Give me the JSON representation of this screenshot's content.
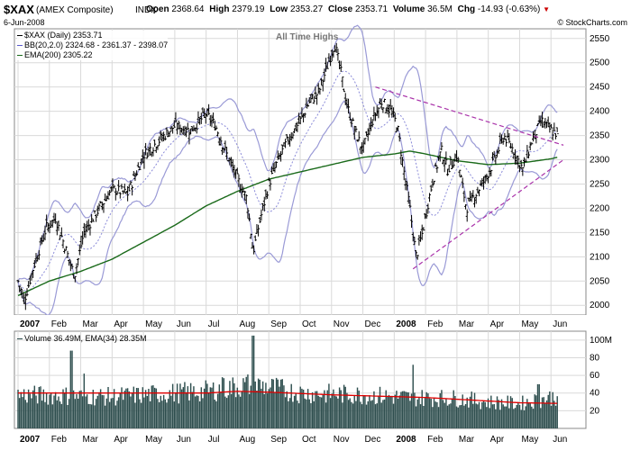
{
  "header": {
    "symbol": "$XAX",
    "name": "(AMEX Composite)",
    "exchange": "INDX",
    "date": "6-Jun-2008",
    "open_label": "Open",
    "open": "2368.64",
    "high_label": "High",
    "high": "2379.19",
    "low_label": "Low",
    "low": "2353.27",
    "close_label": "Close",
    "close": "2353.71",
    "volume_label": "Volume",
    "volume": "36.5M",
    "chg_label": "Chg",
    "chg": "-14.93 (-0.63%)",
    "watermark": "© StockCharts.com"
  },
  "legend": {
    "price": "$XAX (Daily) 2353.71",
    "bb": "BB(20,2.0) 2324.68 - 2361.37 - 2398.07",
    "ema": "EMA(200) 2305.22",
    "volume": "Volume 36.49M, EMA(34) 28.35M"
  },
  "annotation": "All Time Highs",
  "colors": {
    "price": "#000000",
    "bb_band": "#9a9ad6",
    "bb_mid": "#8a8ad8",
    "ema": "#1a6a1a",
    "trend": "#aa33aa",
    "volume_bar": "#2f4f4f",
    "volume_ema": "#e00000",
    "grid": "#d9d9d9"
  },
  "chart_data": [
    {
      "type": "line",
      "title": "$XAX (Daily) 2353.71",
      "x_axis_labels": [
        "2007",
        "Feb",
        "Mar",
        "Apr",
        "May",
        "Jun",
        "Jul",
        "Aug",
        "Sep",
        "Oct",
        "Nov",
        "Dec",
        "2008",
        "Feb",
        "Mar",
        "Apr",
        "May",
        "Jun"
      ],
      "y_tick_labels": [
        "2000",
        "2050",
        "2100",
        "2150",
        "2200",
        "2250",
        "2300",
        "2350",
        "2400",
        "2450",
        "2500",
        "2550"
      ],
      "ylim": [
        1980,
        2570
      ],
      "grid": true,
      "price_anchors_month_index": [
        [
          0.0,
          2050
        ],
        [
          0.2,
          2010
        ],
        [
          0.5,
          2080
        ],
        [
          0.9,
          2160
        ],
        [
          1.2,
          2180
        ],
        [
          1.5,
          2120
        ],
        [
          1.8,
          2060
        ],
        [
          2.1,
          2150
        ],
        [
          2.5,
          2190
        ],
        [
          3.0,
          2240
        ],
        [
          3.5,
          2230
        ],
        [
          4.0,
          2310
        ],
        [
          4.5,
          2340
        ],
        [
          5.0,
          2370
        ],
        [
          5.5,
          2360
        ],
        [
          6.0,
          2395
        ],
        [
          6.3,
          2370
        ],
        [
          6.6,
          2320
        ],
        [
          7.0,
          2260
        ],
        [
          7.3,
          2220
        ],
        [
          7.5,
          2110
        ],
        [
          7.7,
          2170
        ],
        [
          8.0,
          2250
        ],
        [
          8.3,
          2300
        ],
        [
          8.6,
          2340
        ],
        [
          9.0,
          2380
        ],
        [
          9.3,
          2420
        ],
        [
          9.6,
          2440
        ],
        [
          9.9,
          2500
        ],
        [
          10.1,
          2540
        ],
        [
          10.3,
          2480
        ],
        [
          10.5,
          2410
        ],
        [
          10.8,
          2350
        ],
        [
          11.0,
          2320
        ],
        [
          11.3,
          2380
        ],
        [
          11.6,
          2420
        ],
        [
          11.9,
          2400
        ],
        [
          12.1,
          2370
        ],
        [
          12.3,
          2280
        ],
        [
          12.5,
          2200
        ],
        [
          12.7,
          2100
        ],
        [
          12.9,
          2150
        ],
        [
          13.2,
          2250
        ],
        [
          13.5,
          2320
        ],
        [
          13.7,
          2280
        ],
        [
          14.0,
          2310
        ],
        [
          14.3,
          2200
        ],
        [
          14.6,
          2230
        ],
        [
          14.9,
          2260
        ],
        [
          15.2,
          2300
        ],
        [
          15.5,
          2350
        ],
        [
          15.8,
          2320
        ],
        [
          16.1,
          2280
        ],
        [
          16.4,
          2340
        ],
        [
          16.7,
          2380
        ],
        [
          17.0,
          2360
        ],
        [
          17.2,
          2354
        ]
      ],
      "ema200_anchors_month_index": [
        [
          0.0,
          2020
        ],
        [
          1.0,
          2050
        ],
        [
          2.0,
          2070
        ],
        [
          3.0,
          2095
        ],
        [
          4.0,
          2130
        ],
        [
          5.0,
          2165
        ],
        [
          6.0,
          2205
        ],
        [
          7.0,
          2235
        ],
        [
          8.0,
          2260
        ],
        [
          9.0,
          2275
        ],
        [
          10.0,
          2290
        ],
        [
          11.0,
          2305
        ],
        [
          12.0,
          2312
        ],
        [
          12.5,
          2318
        ],
        [
          13.0,
          2312
        ],
        [
          14.0,
          2298
        ],
        [
          15.0,
          2290
        ],
        [
          16.0,
          2293
        ],
        [
          17.0,
          2302
        ],
        [
          17.2,
          2305
        ]
      ],
      "trendlines": [
        {
          "from": [
            11.4,
            2450
          ],
          "to": [
            17.4,
            2330
          ]
        },
        {
          "from": [
            12.6,
            2075
          ],
          "to": [
            17.4,
            2300
          ]
        }
      ],
      "last": {
        "close": 2353.71,
        "ema200": 2305.22,
        "bb_lower": 2324.68,
        "bb_mid": 2361.37,
        "bb_upper": 2398.07
      }
    },
    {
      "type": "bar",
      "title": "Volume 36.49M, EMA(34) 28.35M",
      "y_tick_labels": [
        "20",
        "40",
        "60",
        "80",
        "100M"
      ],
      "ylim": [
        0,
        110
      ],
      "volume_anchors_month_index": [
        [
          0.0,
          38
        ],
        [
          3.0,
          36
        ],
        [
          6.0,
          42
        ],
        [
          7.5,
          50
        ],
        [
          9.0,
          40
        ],
        [
          11.0,
          38
        ],
        [
          12.5,
          35
        ],
        [
          14.0,
          34
        ],
        [
          15.0,
          30
        ],
        [
          16.0,
          28
        ],
        [
          17.2,
          36.49
        ]
      ],
      "volume_ema_anchors_month_index": [
        [
          0.0,
          40
        ],
        [
          2.0,
          40
        ],
        [
          4.0,
          40
        ],
        [
          6.0,
          40
        ],
        [
          7.0,
          42
        ],
        [
          8.0,
          41
        ],
        [
          10.0,
          38
        ],
        [
          12.0,
          36
        ],
        [
          13.0,
          35
        ],
        [
          14.0,
          33
        ],
        [
          15.0,
          31
        ],
        [
          16.0,
          29
        ],
        [
          17.2,
          28.35
        ]
      ],
      "volume_spikes": [
        [
          1.7,
          88
        ],
        [
          7.5,
          105
        ],
        [
          2.1,
          62
        ],
        [
          6.5,
          58
        ],
        [
          12.6,
          72
        ],
        [
          16.6,
          50
        ]
      ],
      "last": {
        "volume": 36.49,
        "ema34": 28.35
      }
    }
  ]
}
